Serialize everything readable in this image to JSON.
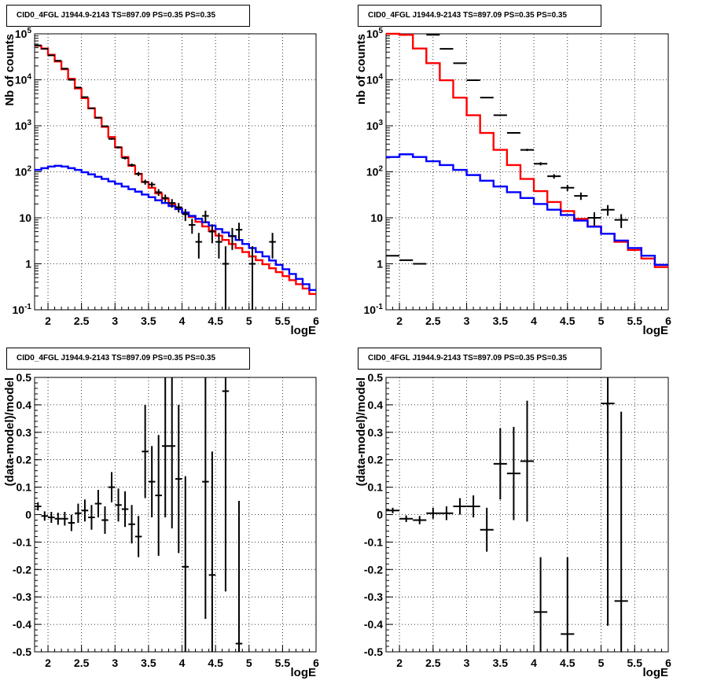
{
  "chart_data": [
    {
      "type": "line",
      "title": "CID0_4FGL J1944.9-2143 TS=897.09 PS=0.35 PS=0.35",
      "xlabel": "logE",
      "ylabel": "Nb of counts",
      "xlim": [
        1.8,
        6
      ],
      "ylim": [
        0.1,
        100000
      ],
      "yscale": "log",
      "grid": true,
      "xticks": [
        "2",
        "2.5",
        "3",
        "3.5",
        "4",
        "4.5",
        "5",
        "5.5",
        "6"
      ],
      "yticks": [
        "10^-1",
        "1",
        "10",
        "10^2",
        "10^3",
        "10^4",
        "10^5"
      ],
      "series": [
        {
          "color": "#ff0000",
          "bin_width": 0.1,
          "x": [
            1.8,
            1.9,
            2.0,
            2.1,
            2.2,
            2.3,
            2.4,
            2.5,
            2.6,
            2.7,
            2.8,
            2.9,
            3.0,
            3.1,
            3.2,
            3.3,
            3.4,
            3.5,
            3.6,
            3.7,
            3.8,
            3.9,
            4.0,
            4.1,
            4.2,
            4.3,
            4.4,
            4.5,
            4.6,
            4.7,
            4.8,
            4.9,
            5.0,
            5.1,
            5.2,
            5.3,
            5.4,
            5.5,
            5.6,
            5.7,
            5.8,
            5.9
          ],
          "values": [
            55000,
            48000,
            35000,
            25000,
            17000,
            10500,
            6500,
            4000,
            2400,
            1500,
            950,
            570,
            340,
            210,
            135,
            90,
            60,
            45,
            34,
            26,
            20,
            16,
            13,
            10.5,
            8.2,
            6.5,
            5.2,
            4.1,
            3.3,
            2.7,
            2.2,
            1.8,
            1.45,
            1.2,
            0.98,
            0.8,
            0.66,
            0.54,
            0.44,
            0.36,
            0.29,
            0.22
          ]
        },
        {
          "color": "#0000ff",
          "bin_width": 0.1,
          "x": [
            1.8,
            1.9,
            2.0,
            2.1,
            2.2,
            2.3,
            2.4,
            2.5,
            2.6,
            2.7,
            2.8,
            2.9,
            3.0,
            3.1,
            3.2,
            3.3,
            3.4,
            3.5,
            3.6,
            3.7,
            3.8,
            3.9,
            4.0,
            4.1,
            4.2,
            4.3,
            4.4,
            4.5,
            4.6,
            4.7,
            4.8,
            4.9,
            5.0,
            5.1,
            5.2,
            5.3,
            5.4,
            5.5,
            5.6,
            5.7,
            5.8,
            5.9
          ],
          "values": [
            110,
            120,
            130,
            135,
            130,
            120,
            110,
            98,
            88,
            78,
            70,
            62,
            55,
            48,
            42,
            37,
            32,
            28,
            24,
            21,
            18,
            15.5,
            13,
            11,
            9.5,
            8,
            6.8,
            5.7,
            4.8,
            4,
            3.3,
            2.7,
            2.2,
            1.8,
            1.45,
            1.18,
            0.95,
            0.76,
            0.6,
            0.47,
            0.36,
            0.27
          ]
        }
      ],
      "points": {
        "x": [
          1.85,
          1.95,
          2.05,
          2.15,
          2.25,
          2.35,
          2.45,
          2.55,
          2.65,
          2.75,
          2.85,
          2.95,
          3.05,
          3.15,
          3.25,
          3.35,
          3.45,
          3.55,
          3.65,
          3.75,
          3.85,
          3.95,
          4.05,
          4.15,
          4.25,
          4.35,
          4.45,
          4.55,
          4.65,
          4.75,
          4.85,
          5.05,
          5.35
        ],
        "y": [
          56000,
          47000,
          34000,
          26000,
          17500,
          10000,
          6800,
          4200,
          2400,
          1500,
          980,
          520,
          340,
          200,
          140,
          90,
          60,
          53,
          36,
          27,
          21,
          17,
          12,
          7,
          3,
          11,
          5,
          3,
          1,
          4,
          5.5,
          1,
          3
        ],
        "err_lo": [
          230,
          210,
          180,
          160,
          130,
          100,
          80,
          65,
          48,
          38,
          31,
          23,
          18,
          14,
          11,
          9,
          7.5,
          7,
          6,
          5,
          4.5,
          4,
          3.5,
          2.5,
          1.7,
          3.3,
          2.2,
          1.7,
          0.98,
          2,
          2.3,
          0.98,
          1.7
        ],
        "err_hi": [
          230,
          210,
          180,
          160,
          130,
          100,
          80,
          65,
          48,
          38,
          31,
          23,
          18,
          14,
          11,
          9,
          7.5,
          7,
          6,
          5,
          4.5,
          4,
          3.5,
          2.5,
          1.7,
          3.3,
          2.2,
          1.7,
          1.4,
          2,
          2.3,
          1.4,
          1.7
        ]
      }
    },
    {
      "type": "line",
      "title": "CID0_4FGL J1944.9-2143 TS=897.09 PS=0.35 PS=0.35",
      "xlabel": "logE",
      "ylabel": "nb of counts",
      "xlim": [
        1.8,
        6
      ],
      "ylim": [
        0.1,
        100000
      ],
      "yscale": "log",
      "grid": true,
      "xticks": [
        "2",
        "2.5",
        "3",
        "3.5",
        "4",
        "4.5",
        "5",
        "5.5",
        "6"
      ],
      "yticks": [
        "10^-1",
        "1",
        "10",
        "10^2",
        "10^3",
        "10^4",
        "10^5"
      ],
      "series": [
        {
          "color": "#ff0000",
          "bin_width": 0.2,
          "x": [
            1.8,
            2.0,
            2.2,
            2.4,
            2.6,
            2.8,
            3.0,
            3.2,
            3.4,
            3.6,
            3.8,
            4.0,
            4.2,
            4.4,
            4.6,
            4.8,
            5.0,
            5.2,
            5.4,
            5.6,
            5.8
          ],
          "values": [
            100000,
            95000,
            48000,
            23000,
            9800,
            4100,
            1700,
            700,
            300,
            140,
            70,
            38,
            22,
            14,
            9.5,
            6.5,
            4.5,
            3,
            2,
            1.3,
            0.85
          ]
        },
        {
          "color": "#0000ff",
          "bin_width": 0.2,
          "x": [
            1.8,
            2.0,
            2.2,
            2.4,
            2.6,
            2.8,
            3.0,
            3.2,
            3.4,
            3.6,
            3.8,
            4.0,
            4.2,
            4.4,
            4.6,
            4.8,
            5.0,
            5.2,
            5.4,
            5.6,
            5.8
          ],
          "values": [
            210,
            240,
            210,
            170,
            140,
            110,
            85,
            64,
            48,
            36,
            27,
            20,
            15,
            11.5,
            8.7,
            6.4,
            4.5,
            3.2,
            2.2,
            1.5,
            0.95
          ]
        }
      ],
      "points": {
        "x": [
          1.9,
          2.1,
          2.3,
          2.5,
          2.7,
          2.9,
          3.1,
          3.3,
          3.5,
          3.7,
          3.9,
          4.1,
          4.3,
          4.5,
          4.7,
          4.9,
          5.1,
          5.3
        ],
        "y": [
          1.5,
          1.2,
          1,
          95000,
          47000,
          23000,
          9800,
          4100,
          1700,
          700,
          300,
          150,
          80,
          45,
          30,
          10,
          15,
          9
        ],
        "err_lo": [
          0,
          0,
          0,
          300,
          220,
          150,
          100,
          64,
          41,
          26,
          17,
          12,
          9,
          6.7,
          5.5,
          3.2,
          3.9,
          3
        ],
        "err_hi": [
          0,
          0,
          0,
          300,
          220,
          150,
          100,
          64,
          41,
          26,
          17,
          12,
          9,
          6.7,
          5.5,
          3.2,
          3.9,
          3
        ]
      }
    },
    {
      "type": "scatter",
      "title": "CID0_4FGL J1944.9-2143 TS=897.09 PS=0.35 PS=0.35",
      "xlabel": "logE",
      "ylabel": "(data-model)/model",
      "xlim": [
        1.8,
        6
      ],
      "ylim": [
        -0.5,
        0.5
      ],
      "grid": true,
      "xticks": [
        "2",
        "2.5",
        "3",
        "3.5",
        "4",
        "4.5",
        "5",
        "5.5",
        "6"
      ],
      "yticks": [
        "-0.5",
        "-0.4",
        "-0.3",
        "-0.2",
        "-0.1",
        "0",
        "0.1",
        "0.2",
        "0.3",
        "0.4",
        "0.5"
      ],
      "points": {
        "x": [
          1.85,
          1.95,
          2.05,
          2.15,
          2.25,
          2.35,
          2.45,
          2.55,
          2.65,
          2.75,
          2.85,
          2.95,
          3.05,
          3.15,
          3.25,
          3.35,
          3.45,
          3.55,
          3.65,
          3.75,
          3.85,
          3.95,
          4.05,
          4.35,
          4.45,
          4.65,
          4.85
        ],
        "y": [
          0.03,
          -0.005,
          -0.01,
          -0.015,
          -0.015,
          -0.03,
          0.005,
          0.015,
          -0.01,
          0.04,
          -0.02,
          0.1,
          0.035,
          0.02,
          -0.035,
          -0.08,
          0.23,
          0.12,
          0.07,
          0.25,
          0.25,
          0.13,
          -0.19,
          0.12,
          -0.22,
          0.45,
          -0.47
        ],
        "err": [
          0.015,
          0.017,
          0.02,
          0.022,
          0.025,
          0.03,
          0.035,
          0.04,
          0.045,
          0.05,
          0.05,
          0.055,
          0.06,
          0.065,
          0.07,
          0.075,
          0.17,
          0.13,
          0.22,
          0.26,
          0.3,
          0.27,
          0.33,
          0.5,
          0.45,
          0.73,
          0.52
        ]
      }
    },
    {
      "type": "scatter",
      "title": "CID0_4FGL J1944.9-2143 TS=897.09 PS=0.35 PS=0.35",
      "xlabel": "logE",
      "ylabel": "(data-model)/model",
      "xlim": [
        1.8,
        6
      ],
      "ylim": [
        -0.5,
        0.5
      ],
      "grid": true,
      "xticks": [
        "2",
        "2.5",
        "3",
        "3.5",
        "4",
        "4.5",
        "5",
        "5.5",
        "6"
      ],
      "yticks": [
        "-0.5",
        "-0.4",
        "-0.3",
        "-0.2",
        "-0.1",
        "0",
        "0.1",
        "0.2",
        "0.3",
        "0.4",
        "0.5"
      ],
      "points": {
        "x": [
          1.9,
          2.1,
          2.3,
          2.5,
          2.7,
          2.9,
          3.1,
          3.3,
          3.5,
          3.7,
          3.9,
          4.1,
          4.5,
          5.1,
          5.3
        ],
        "y": [
          0.015,
          -0.015,
          -0.02,
          0.005,
          0.005,
          0.03,
          0.03,
          -0.055,
          0.185,
          0.15,
          0.195,
          -0.355,
          -0.435,
          0.405,
          -0.315
        ],
        "err": [
          0.01,
          0.012,
          0.015,
          0.02,
          0.025,
          0.03,
          0.04,
          0.08,
          0.13,
          0.17,
          0.22,
          0.2,
          0.28,
          0.81,
          0.69
        ]
      }
    }
  ]
}
